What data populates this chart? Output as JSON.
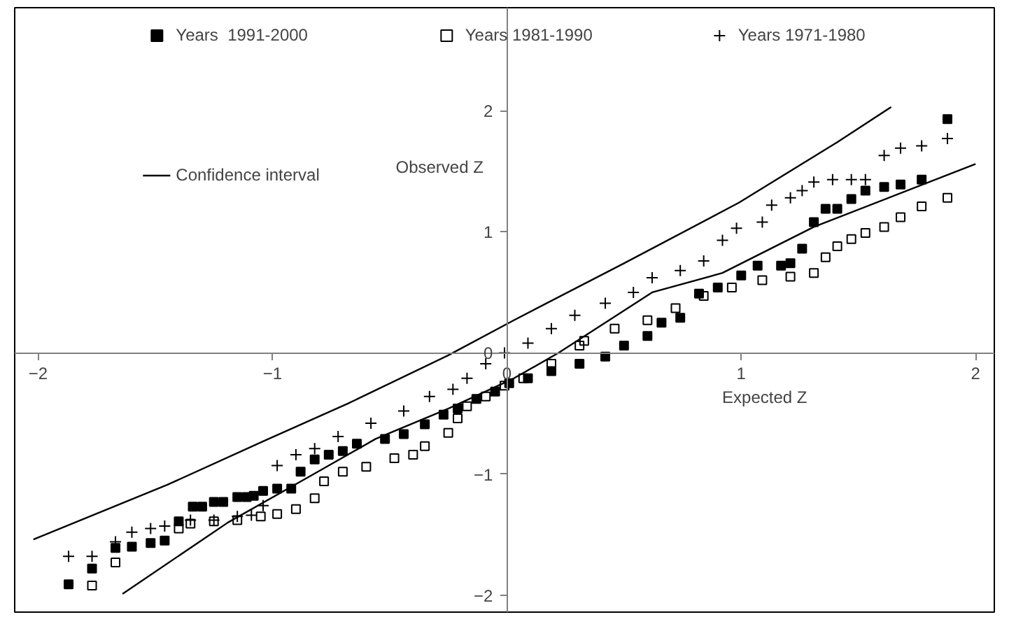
{
  "chart_data": {
    "type": "scatter",
    "xlabel": "Expected Z",
    "ylabel": "Observed Z",
    "xlim": [
      -2.1,
      2.08
    ],
    "ylim": [
      -2.14,
      2.85
    ],
    "xticks": [
      -2,
      -1,
      0,
      1,
      2
    ],
    "yticks": [
      -2,
      -1,
      0,
      1,
      2
    ],
    "grid": false,
    "legend": "top",
    "series": [
      {
        "name": "Years  1991-2000",
        "color": "#000000",
        "marker": "square",
        "x": [
          -1.87,
          -1.77,
          -1.67,
          -1.6,
          -1.52,
          -1.46,
          -1.4,
          -1.34,
          -1.3,
          -1.25,
          -1.21,
          -1.15,
          -1.11,
          -1.08,
          -1.04,
          -0.98,
          -0.92,
          -0.88,
          -0.82,
          -0.76,
          -0.7,
          -0.64,
          -0.52,
          -0.44,
          -0.35,
          -0.27,
          -0.21,
          -0.13,
          -0.05,
          0.01,
          0.09,
          0.19,
          0.31,
          0.42,
          0.5,
          0.6,
          0.66,
          0.74,
          0.82,
          0.9,
          1.0,
          1.07,
          1.17,
          1.21,
          1.26,
          1.31,
          1.36,
          1.41,
          1.47,
          1.53,
          1.61,
          1.68,
          1.77,
          1.88
        ],
        "values": [
          -1.91,
          -1.78,
          -1.61,
          -1.6,
          -1.57,
          -1.55,
          -1.39,
          -1.27,
          -1.27,
          -1.23,
          -1.23,
          -1.19,
          -1.19,
          -1.18,
          -1.14,
          -1.12,
          -1.12,
          -0.98,
          -0.88,
          -0.84,
          -0.81,
          -0.75,
          -0.71,
          -0.67,
          -0.59,
          -0.51,
          -0.46,
          -0.38,
          -0.32,
          -0.25,
          -0.21,
          -0.15,
          -0.09,
          -0.03,
          0.06,
          0.14,
          0.25,
          0.29,
          0.49,
          0.54,
          0.64,
          0.72,
          0.72,
          0.74,
          0.86,
          1.08,
          1.19,
          1.19,
          1.27,
          1.34,
          1.37,
          1.39,
          1.43,
          1.93
        ]
      },
      {
        "name": "Years 1981-1990",
        "color": "#000000",
        "marker": "square_open",
        "x": [
          -1.77,
          -1.67,
          -1.4,
          -1.35,
          -1.25,
          -1.15,
          -1.05,
          -0.98,
          -0.9,
          -0.82,
          -0.78,
          -0.7,
          -0.6,
          -0.48,
          -0.4,
          -0.35,
          -0.25,
          -0.21,
          -0.17,
          -0.09,
          -0.01,
          0.07,
          0.19,
          0.31,
          0.33,
          0.46,
          0.6,
          0.72,
          0.84,
          0.96,
          1.09,
          1.21,
          1.31,
          1.36,
          1.41,
          1.47,
          1.53,
          1.61,
          1.68,
          1.77,
          1.88
        ],
        "values": [
          -1.92,
          -1.73,
          -1.45,
          -1.41,
          -1.39,
          -1.38,
          -1.35,
          -1.33,
          -1.29,
          -1.2,
          -1.06,
          -0.98,
          -0.94,
          -0.87,
          -0.84,
          -0.77,
          -0.66,
          -0.54,
          -0.44,
          -0.36,
          -0.27,
          -0.21,
          -0.09,
          0.06,
          0.1,
          0.2,
          0.27,
          0.37,
          0.47,
          0.54,
          0.6,
          0.63,
          0.66,
          0.79,
          0.88,
          0.94,
          0.99,
          1.04,
          1.12,
          1.21,
          1.28
        ]
      },
      {
        "name": "Years 1971-1980",
        "color": "#000000",
        "marker": "cross",
        "x": [
          -1.87,
          -1.77,
          -1.67,
          -1.6,
          -1.52,
          -1.46,
          -1.35,
          -1.25,
          -1.15,
          -1.09,
          -1.04,
          -0.98,
          -0.9,
          -0.82,
          -0.72,
          -0.58,
          -0.44,
          -0.33,
          -0.23,
          -0.17,
          -0.09,
          -0.01,
          0.09,
          0.19,
          0.29,
          0.42,
          0.54,
          0.62,
          0.74,
          0.84,
          0.92,
          0.98,
          1.09,
          1.13,
          1.21,
          1.26,
          1.31,
          1.39,
          1.47,
          1.53,
          1.61,
          1.68,
          1.77,
          1.88
        ],
        "values": [
          -1.68,
          -1.68,
          -1.56,
          -1.48,
          -1.45,
          -1.43,
          -1.38,
          -1.38,
          -1.35,
          -1.34,
          -1.26,
          -0.93,
          -0.84,
          -0.79,
          -0.69,
          -0.58,
          -0.48,
          -0.36,
          -0.3,
          -0.21,
          -0.09,
          0.0,
          0.08,
          0.2,
          0.31,
          0.41,
          0.5,
          0.62,
          0.68,
          0.76,
          0.93,
          1.03,
          1.08,
          1.22,
          1.28,
          1.34,
          1.41,
          1.43,
          1.43,
          1.43,
          1.63,
          1.69,
          1.71,
          1.77
        ]
      },
      {
        "name": "Confidence interval",
        "type": "line",
        "color": "#000000",
        "marker": "none",
        "x": [
          -2.02,
          -1.45,
          -1.04,
          -0.68,
          -0.25,
          0.03,
          0.5,
          0.99,
          1.41,
          1.64
        ],
        "values": [
          -1.54,
          -1.09,
          -0.73,
          -0.42,
          -0.02,
          0.27,
          0.74,
          1.24,
          1.74,
          2.03
        ]
      },
      {
        "type": "line",
        "color": "#000000",
        "marker": "none",
        "x": [
          -1.64,
          -1.19,
          -0.86,
          -0.56,
          -0.25,
          0.03,
          0.22,
          0.62,
          0.92,
          1.31,
          2.0
        ],
        "values": [
          -1.99,
          -1.4,
          -1.04,
          -0.71,
          -0.46,
          -0.21,
          0.0,
          0.5,
          0.66,
          1.04,
          1.56
        ]
      }
    ]
  }
}
